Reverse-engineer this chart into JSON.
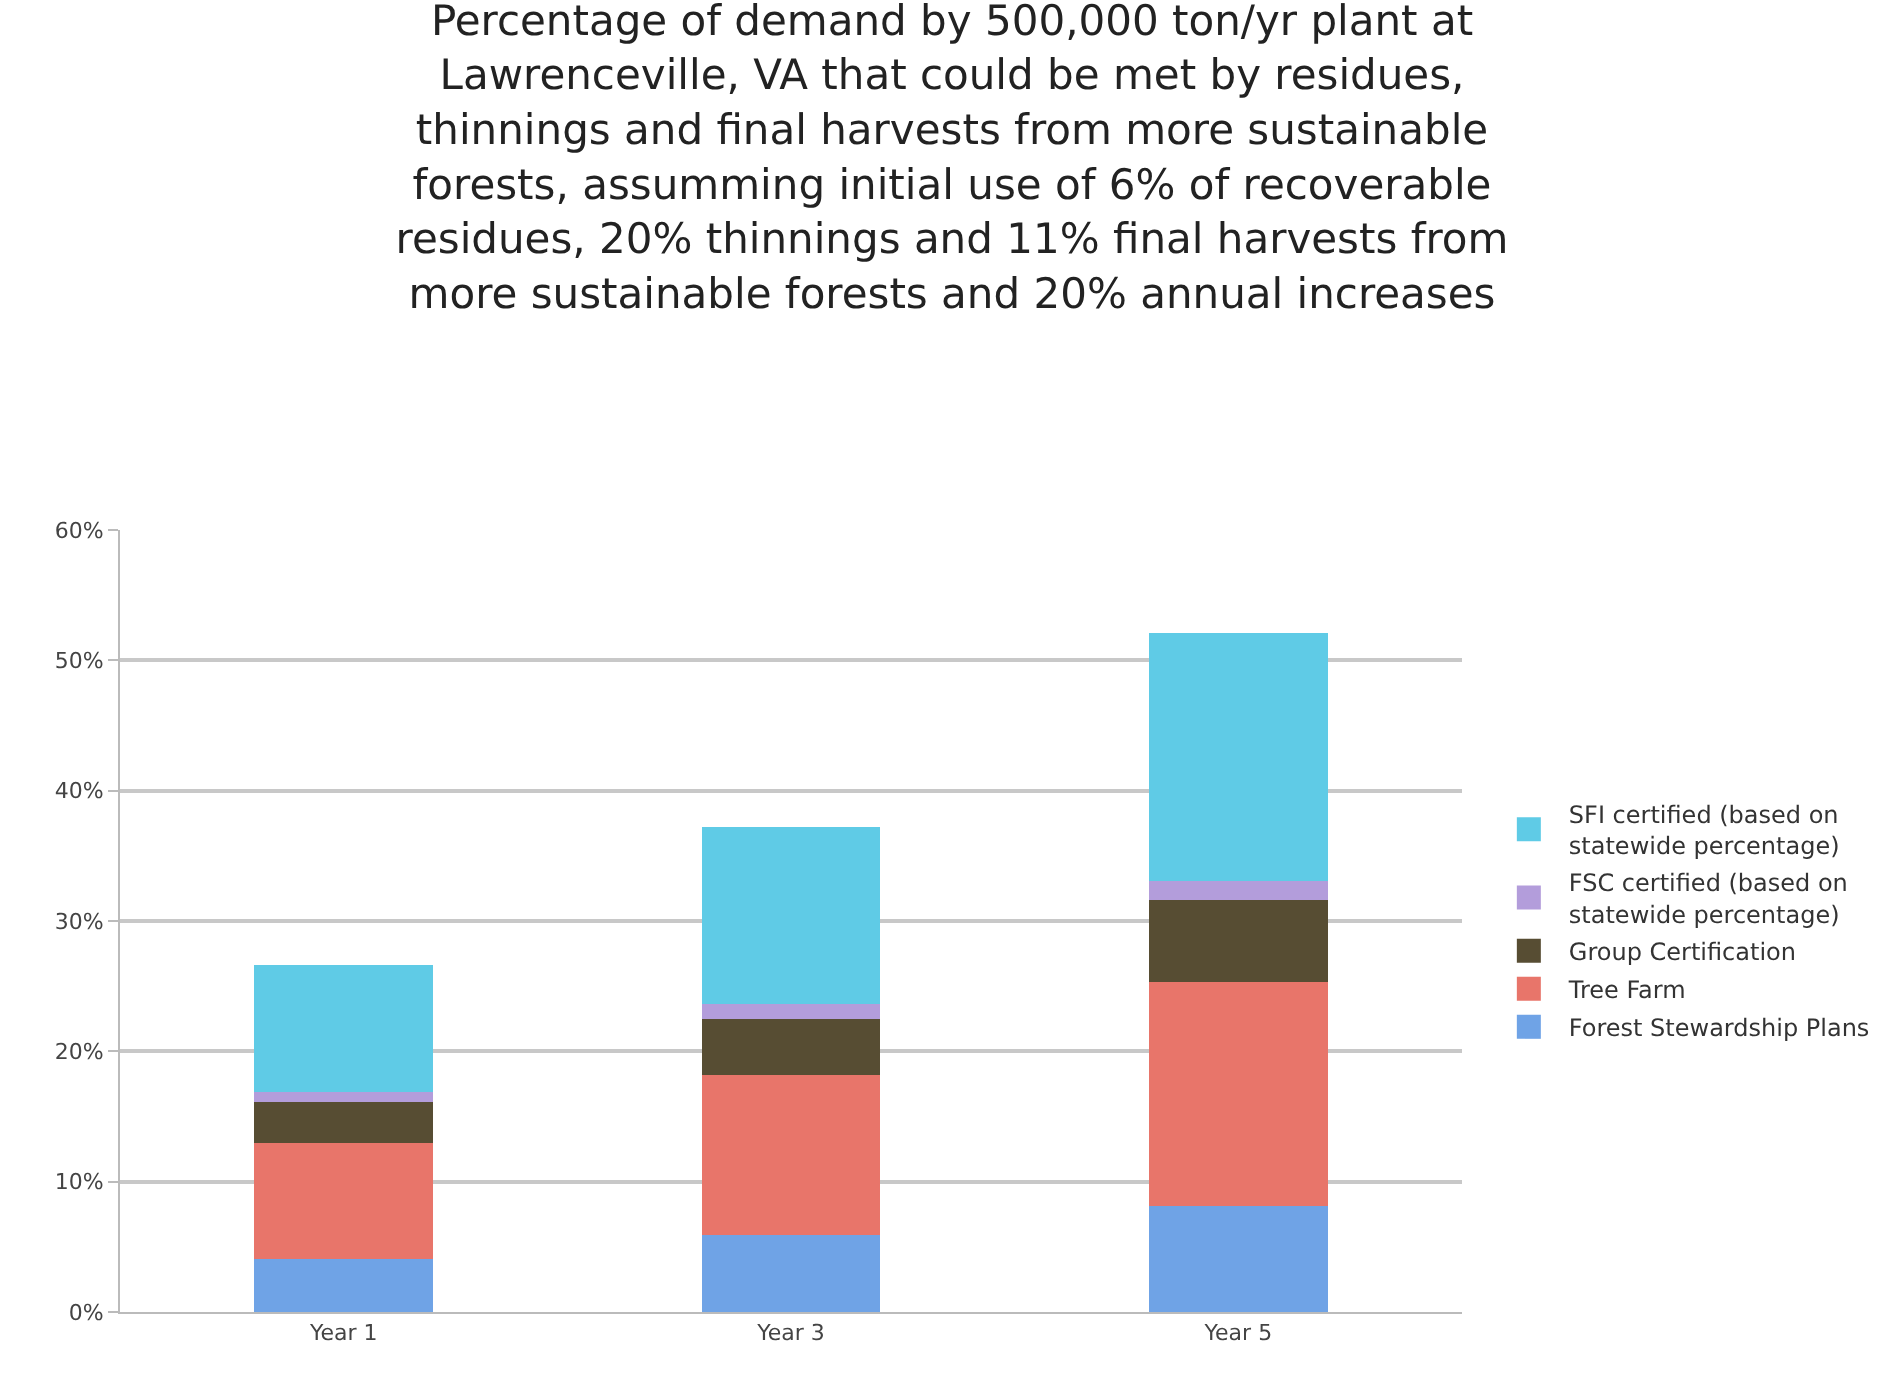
{
  "chart_data": {
    "type": "bar",
    "title": "Percentage of demand by 500,000 ton/yr plant at Lawrenceville, VA that could be met by residues, thinnings and final harvests from more sustainable forests, assumming initial use of 6% of recoverable residues, 20% thinnings and 11% final harvests from more sustainable forests and 20% annual increases",
    "categories": [
      "Year 1",
      "Year 3",
      "Year 5"
    ],
    "stacked": true,
    "series": [
      {
        "name": "Forest Stewardship Plans",
        "color": "#6fa3e6",
        "values": [
          4.1,
          5.9,
          8.1
        ]
      },
      {
        "name": "Tree Farm",
        "color": "#e8756a",
        "values": [
          8.9,
          12.3,
          17.2
        ]
      },
      {
        "name": "Group Certification",
        "color": "#574d33",
        "values": [
          3.1,
          4.3,
          6.3
        ]
      },
      {
        "name": "FSC certified (based on statewide percentage)",
        "color": "#b39ddb",
        "values": [
          0.8,
          1.1,
          1.5
        ]
      },
      {
        "name": "SFI certified (based on statewide percentage)",
        "color": "#5fcbe6",
        "values": [
          9.7,
          13.6,
          19.0
        ]
      }
    ],
    "ylim": [
      0,
      60
    ],
    "yticks": [
      {
        "value": 0,
        "label": "0%"
      },
      {
        "value": 10,
        "label": "10%"
      },
      {
        "value": 20,
        "label": "20%"
      },
      {
        "value": 30,
        "label": "30%"
      },
      {
        "value": 40,
        "label": "40%"
      },
      {
        "value": 50,
        "label": "50%"
      },
      {
        "value": 60,
        "label": "60%"
      }
    ],
    "grid": "y",
    "legend": "right"
  }
}
